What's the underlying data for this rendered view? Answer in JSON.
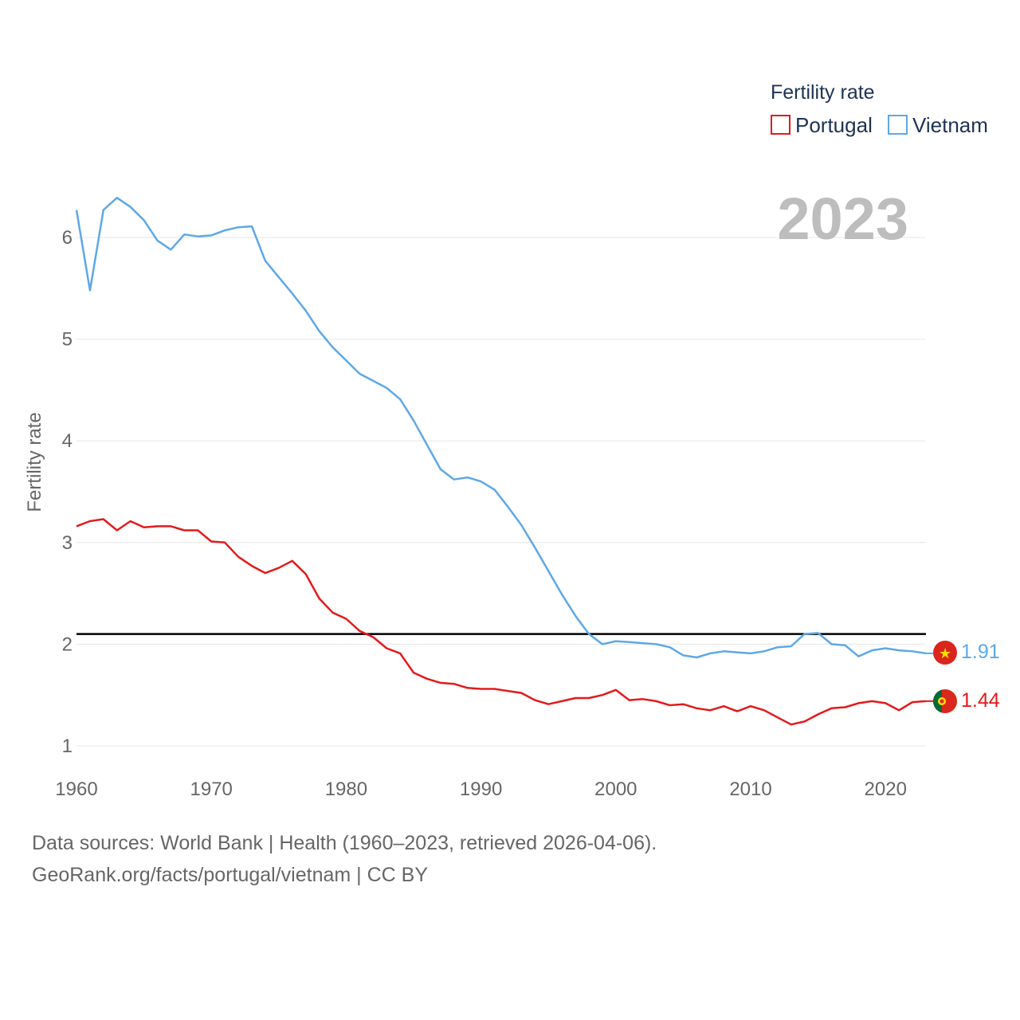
{
  "chart_data": {
    "type": "line",
    "title": "",
    "xlabel": "",
    "ylabel": "Fertility rate",
    "xlim": [
      1960,
      2023
    ],
    "ylim": [
      0.8,
      6.6
    ],
    "x_ticks": [
      1960,
      1970,
      1980,
      1990,
      2000,
      2010,
      2020
    ],
    "y_ticks": [
      1,
      2,
      3,
      4,
      5,
      6
    ],
    "grid": true,
    "legend": {
      "title": "Fertility rate",
      "position": "top-right"
    },
    "year_label": "2023",
    "reference_line": {
      "value": 2.1,
      "color": "#000000"
    },
    "x": [
      1960,
      1961,
      1962,
      1963,
      1964,
      1965,
      1966,
      1967,
      1968,
      1969,
      1970,
      1971,
      1972,
      1973,
      1974,
      1975,
      1976,
      1977,
      1978,
      1979,
      1980,
      1981,
      1982,
      1983,
      1984,
      1985,
      1986,
      1987,
      1988,
      1989,
      1990,
      1991,
      1992,
      1993,
      1994,
      1995,
      1996,
      1997,
      1998,
      1999,
      2000,
      2001,
      2002,
      2003,
      2004,
      2005,
      2006,
      2007,
      2008,
      2009,
      2010,
      2011,
      2012,
      2013,
      2014,
      2015,
      2016,
      2017,
      2018,
      2019,
      2020,
      2021,
      2022,
      2023
    ],
    "series": [
      {
        "name": "Portugal",
        "color": "#e31a1c",
        "end_label": "1.44",
        "flag": "portugal-flag-icon",
        "values": [
          3.16,
          3.21,
          3.23,
          3.12,
          3.21,
          3.15,
          3.16,
          3.16,
          3.12,
          3.12,
          3.01,
          3.0,
          2.86,
          2.77,
          2.7,
          2.75,
          2.82,
          2.69,
          2.45,
          2.31,
          2.25,
          2.13,
          2.07,
          1.96,
          1.91,
          1.72,
          1.66,
          1.62,
          1.61,
          1.57,
          1.56,
          1.56,
          1.54,
          1.52,
          1.45,
          1.41,
          1.44,
          1.47,
          1.47,
          1.5,
          1.55,
          1.45,
          1.46,
          1.44,
          1.4,
          1.41,
          1.37,
          1.35,
          1.39,
          1.34,
          1.39,
          1.35,
          1.28,
          1.21,
          1.24,
          1.31,
          1.37,
          1.38,
          1.42,
          1.44,
          1.42,
          1.35,
          1.43,
          1.44
        ]
      },
      {
        "name": "Vietnam",
        "color": "#5ea8e6",
        "end_label": "1.91",
        "flag": "vietnam-flag-icon",
        "values": [
          6.27,
          5.48,
          6.27,
          6.39,
          6.3,
          6.17,
          5.97,
          5.88,
          6.03,
          6.01,
          6.02,
          6.07,
          6.1,
          6.11,
          5.77,
          5.61,
          5.45,
          5.28,
          5.08,
          4.92,
          4.79,
          4.66,
          4.59,
          4.52,
          4.41,
          4.2,
          3.96,
          3.72,
          3.62,
          3.64,
          3.6,
          3.52,
          3.35,
          3.17,
          2.95,
          2.72,
          2.49,
          2.28,
          2.1,
          2.0,
          2.03,
          2.02,
          2.01,
          2.0,
          1.97,
          1.89,
          1.87,
          1.91,
          1.93,
          1.92,
          1.91,
          1.93,
          1.97,
          1.98,
          2.1,
          2.11,
          2.0,
          1.99,
          1.88,
          1.94,
          1.96,
          1.94,
          1.93,
          1.91
        ]
      }
    ]
  },
  "footer": {
    "sources": "Data sources: World Bank | Health (1960–2023, retrieved 2026-04-06).",
    "credit": "GeoRank.org/facts/portugal/vietnam | CC BY"
  }
}
